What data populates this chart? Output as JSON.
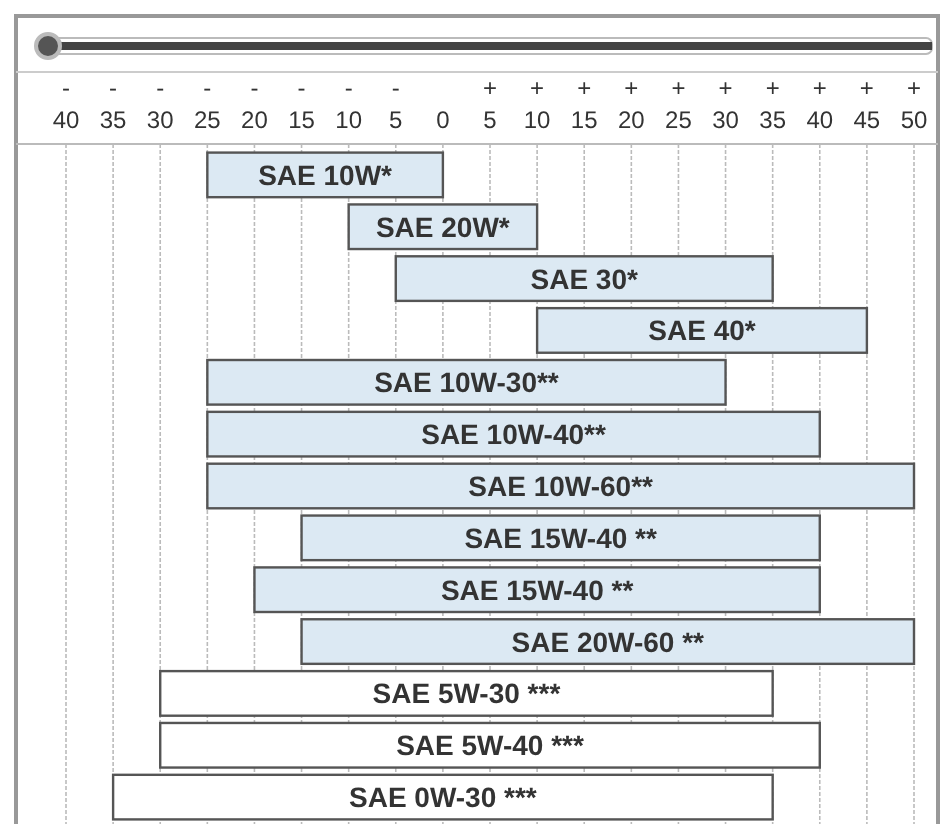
{
  "chart_data": {
    "type": "bar",
    "orientation": "horizontal",
    "categories": [
      "SAE 10W*",
      "SAE 20W*",
      "SAE 30*",
      "SAE 40*",
      "SAE 10W-30**",
      "SAE 10W-40**",
      "SAE 10W-60**",
      "SAE 15W-40 **",
      "SAE 15W-40 **",
      "SAE 20W-60 **",
      "SAE 5W-30 ***",
      "SAE 5W-40 ***",
      "SAE 0W-30 ***"
    ],
    "base": [
      -25,
      -10,
      -5,
      10,
      -25,
      -25,
      -25,
      -15,
      -20,
      -15,
      -30,
      -30,
      -35
    ],
    "values": [
      25,
      20,
      40,
      35,
      55,
      65,
      75,
      55,
      60,
      65,
      65,
      70,
      70
    ],
    "colors": [
      "#dce9f3",
      "#dce9f3",
      "#dce9f3",
      "#dce9f3",
      "#dce9f3",
      "#dce9f3",
      "#dce9f3",
      "#dce9f3",
      "#dce9f3",
      "#dce9f3",
      "#ffffff",
      "#ffffff",
      "#ffffff"
    ],
    "xlim": [
      -40,
      50
    ],
    "xticks": [
      {
        "value": -40,
        "label": "-40"
      },
      {
        "value": -35,
        "label": "-35"
      },
      {
        "value": -30,
        "label": "-30"
      },
      {
        "value": -25,
        "label": "-25"
      },
      {
        "value": -20,
        "label": "-20"
      },
      {
        "value": -15,
        "label": "-15"
      },
      {
        "value": -10,
        "label": "-10"
      },
      {
        "value": -5,
        "label": "-5"
      },
      0,
      {
        "value": 5,
        "label": "+5"
      },
      {
        "value": 10,
        "label": "+10"
      },
      {
        "value": 15,
        "label": "+15"
      },
      {
        "value": 20,
        "label": "+20"
      },
      {
        "value": 25,
        "label": "+25"
      },
      {
        "value": 30,
        "label": "+30"
      },
      {
        "value": 35,
        "label": "+35"
      },
      {
        "value": 40,
        "label": "+40"
      },
      {
        "value": 45,
        "label": "+45"
      },
      {
        "value": 50,
        "label": "+50"
      }
    ],
    "grid": "x"
  }
}
